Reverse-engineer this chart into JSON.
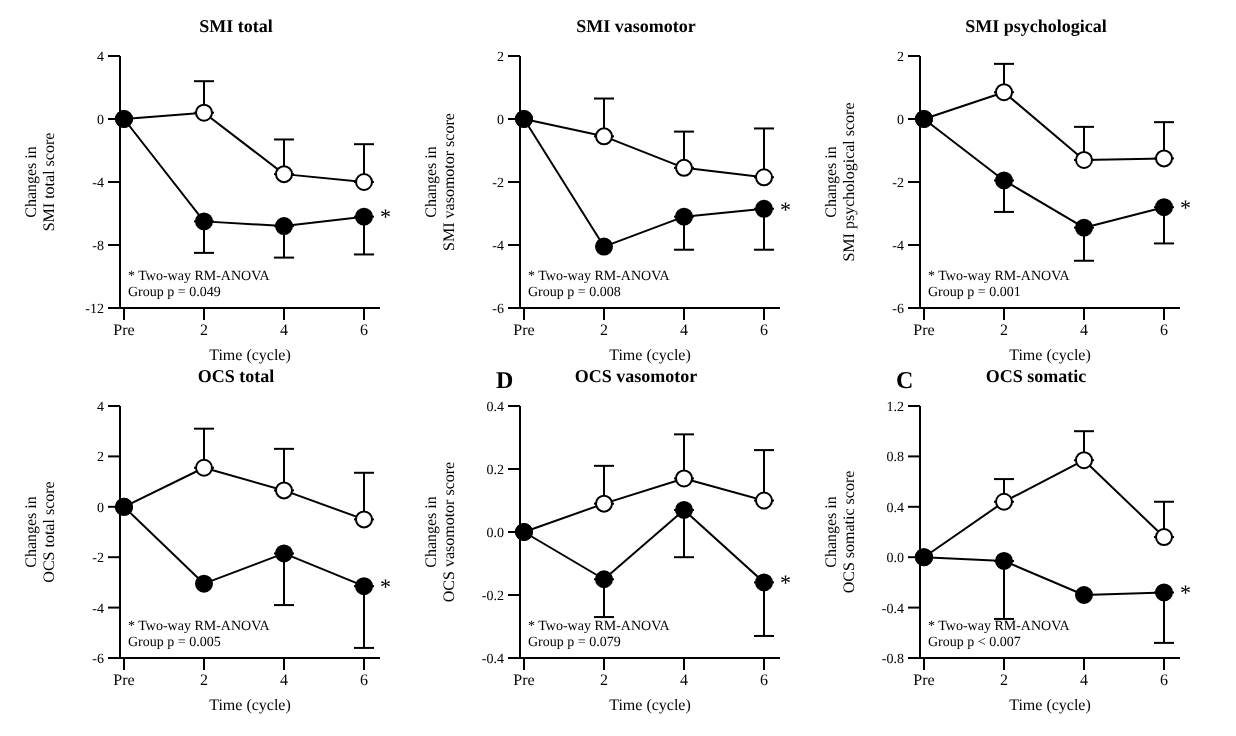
{
  "chart_data": [
    {
      "type": "line",
      "title": "SMI total",
      "xlabel": "Time (cycle)",
      "ylabel": "Changes in\nSMI total score",
      "categories": [
        "Pre",
        "2",
        "4",
        "6"
      ],
      "ylim": [
        -12,
        4
      ],
      "yticks": [
        -12,
        -8,
        -4,
        0,
        4
      ],
      "grid": false,
      "legend": false,
      "marker": "circle",
      "series": [
        {
          "color": "#ffffff",
          "values": [
            0,
            0.4,
            -3.5,
            -4.0
          ],
          "errors": [
            null,
            [
              0.4,
              2.4
            ],
            [
              -3.5,
              -1.3
            ],
            [
              -4.0,
              -1.6
            ]
          ]
        },
        {
          "color": "#000000",
          "values": [
            0,
            -6.5,
            -6.8,
            -6.2
          ],
          "errors": [
            null,
            [
              -8.5,
              -6.5
            ],
            [
              -8.8,
              -6.8
            ],
            [
              -8.6,
              -6.2
            ]
          ]
        }
      ],
      "annotations": [
        "* Two-way RM-ANOVA",
        "Group p = 0.049",
        {
          "text": "*",
          "x": "6",
          "y": -6.2
        }
      ]
    },
    {
      "type": "line",
      "title": "SMI vasomotor",
      "xlabel": "Time (cycle)",
      "ylabel": "Changes in\nSMI vasomotor score",
      "categories": [
        "Pre",
        "2",
        "4",
        "6"
      ],
      "ylim": [
        -6,
        2
      ],
      "yticks": [
        -6,
        -4,
        -2,
        0,
        2
      ],
      "grid": false,
      "legend": false,
      "marker": "circle",
      "series": [
        {
          "color": "#ffffff",
          "values": [
            0,
            -0.55,
            -1.55,
            -1.85
          ],
          "errors": [
            null,
            [
              -0.55,
              0.65
            ],
            [
              -1.55,
              -0.4
            ],
            [
              -1.85,
              -0.3
            ]
          ]
        },
        {
          "color": "#000000",
          "values": [
            0,
            -4.05,
            -3.1,
            -2.85
          ],
          "errors": [
            null,
            null,
            [
              -4.15,
              -3.1
            ],
            [
              -4.15,
              -2.85
            ]
          ]
        }
      ],
      "annotations": [
        "* Two-way RM-ANOVA",
        "Group p = 0.008",
        {
          "text": "*",
          "x": "6",
          "y": -2.85
        }
      ]
    },
    {
      "type": "line",
      "title": "SMI psychological",
      "xlabel": "Time (cycle)",
      "ylabel": "Changes in\nSMI psychological score",
      "categories": [
        "Pre",
        "2",
        "4",
        "6"
      ],
      "ylim": [
        -6,
        2
      ],
      "yticks": [
        -6,
        -4,
        -2,
        0,
        2
      ],
      "grid": false,
      "legend": false,
      "marker": "circle",
      "series": [
        {
          "color": "#ffffff",
          "values": [
            0,
            0.85,
            -1.3,
            -1.25
          ],
          "errors": [
            null,
            [
              0.85,
              1.75
            ],
            [
              -1.3,
              -0.25
            ],
            [
              -1.25,
              -0.1
            ]
          ]
        },
        {
          "color": "#000000",
          "values": [
            0,
            -1.95,
            -3.45,
            -2.8
          ],
          "errors": [
            null,
            [
              -2.95,
              -1.95
            ],
            [
              -4.5,
              -3.45
            ],
            [
              -3.95,
              -2.8
            ]
          ]
        }
      ],
      "annotations": [
        "* Two-way RM-ANOVA",
        "Group p = 0.001",
        {
          "text": "*",
          "x": "6",
          "y": -2.8
        }
      ]
    },
    {
      "type": "line",
      "title": "OCS total",
      "xlabel": "Time (cycle)",
      "ylabel": "Changes in\nOCS total score",
      "categories": [
        "Pre",
        "2",
        "4",
        "6"
      ],
      "ylim": [
        -6,
        4
      ],
      "yticks": [
        -6,
        -4,
        -2,
        0,
        2,
        4
      ],
      "grid": false,
      "legend": false,
      "marker": "circle",
      "series": [
        {
          "color": "#ffffff",
          "values": [
            0,
            1.55,
            0.65,
            -0.5
          ],
          "errors": [
            null,
            [
              1.55,
              3.1
            ],
            [
              0.65,
              2.3
            ],
            [
              -0.5,
              1.35
            ]
          ]
        },
        {
          "color": "#000000",
          "values": [
            0,
            -3.05,
            -1.85,
            -3.15
          ],
          "errors": [
            null,
            null,
            [
              -3.9,
              -1.85
            ],
            [
              -5.6,
              -3.15
            ]
          ]
        }
      ],
      "annotations": [
        "* Two-way RM-ANOVA",
        "Group p = 0.005",
        {
          "text": "*",
          "x": "6",
          "y": -3.15
        }
      ]
    },
    {
      "type": "line",
      "title": "OCS vasomotor",
      "xlabel": "Time (cycle)",
      "ylabel": "Changes in\nOCS vasomotor score",
      "categories": [
        "Pre",
        "2",
        "4",
        "6"
      ],
      "ylim": [
        -0.4,
        0.4
      ],
      "yticks": [
        -0.4,
        -0.2,
        {
          "value": 0,
          "label": "0.0"
        },
        0.2,
        0.4
      ],
      "grid": false,
      "legend": false,
      "marker": "circle",
      "series": [
        {
          "color": "#ffffff",
          "values": [
            0,
            0.09,
            0.17,
            0.1
          ],
          "errors": [
            null,
            [
              0.09,
              0.21
            ],
            [
              0.17,
              0.31
            ],
            [
              0.1,
              0.26
            ]
          ]
        },
        {
          "color": "#000000",
          "values": [
            0,
            -0.15,
            0.07,
            -0.16
          ],
          "errors": [
            null,
            [
              -0.27,
              -0.15
            ],
            [
              -0.08,
              0.07
            ],
            [
              -0.33,
              -0.16
            ]
          ]
        }
      ],
      "annotations": [
        "D",
        "* Two-way RM-ANOVA",
        "Group p = 0.079",
        {
          "text": "*",
          "x": "6",
          "y": -0.16
        }
      ]
    },
    {
      "type": "line",
      "title": "OCS somatic",
      "xlabel": "Time (cycle)",
      "ylabel": "Changes in\nOCS somatic score",
      "categories": [
        "Pre",
        "2",
        "4",
        "6"
      ],
      "ylim": [
        -0.8,
        1.2
      ],
      "yticks": [
        -0.8,
        -0.4,
        {
          "value": 0,
          "label": "0.0"
        },
        0.4,
        0.8,
        1.2
      ],
      "grid": false,
      "legend": false,
      "marker": "circle",
      "series": [
        {
          "color": "#ffffff",
          "values": [
            0,
            0.44,
            0.77,
            0.16
          ],
          "errors": [
            null,
            [
              0.44,
              0.62
            ],
            [
              0.77,
              1.0
            ],
            [
              0.16,
              0.44
            ]
          ]
        },
        {
          "color": "#000000",
          "values": [
            0,
            -0.03,
            -0.3,
            -0.28
          ],
          "errors": [
            null,
            [
              -0.49,
              -0.03
            ],
            null,
            [
              -0.68,
              -0.28
            ]
          ]
        }
      ],
      "annotations": [
        "C",
        "* Two-way RM-ANOVA",
        "Group p < 0.007",
        {
          "text": "*",
          "x": "6",
          "y": -0.28
        }
      ]
    }
  ]
}
